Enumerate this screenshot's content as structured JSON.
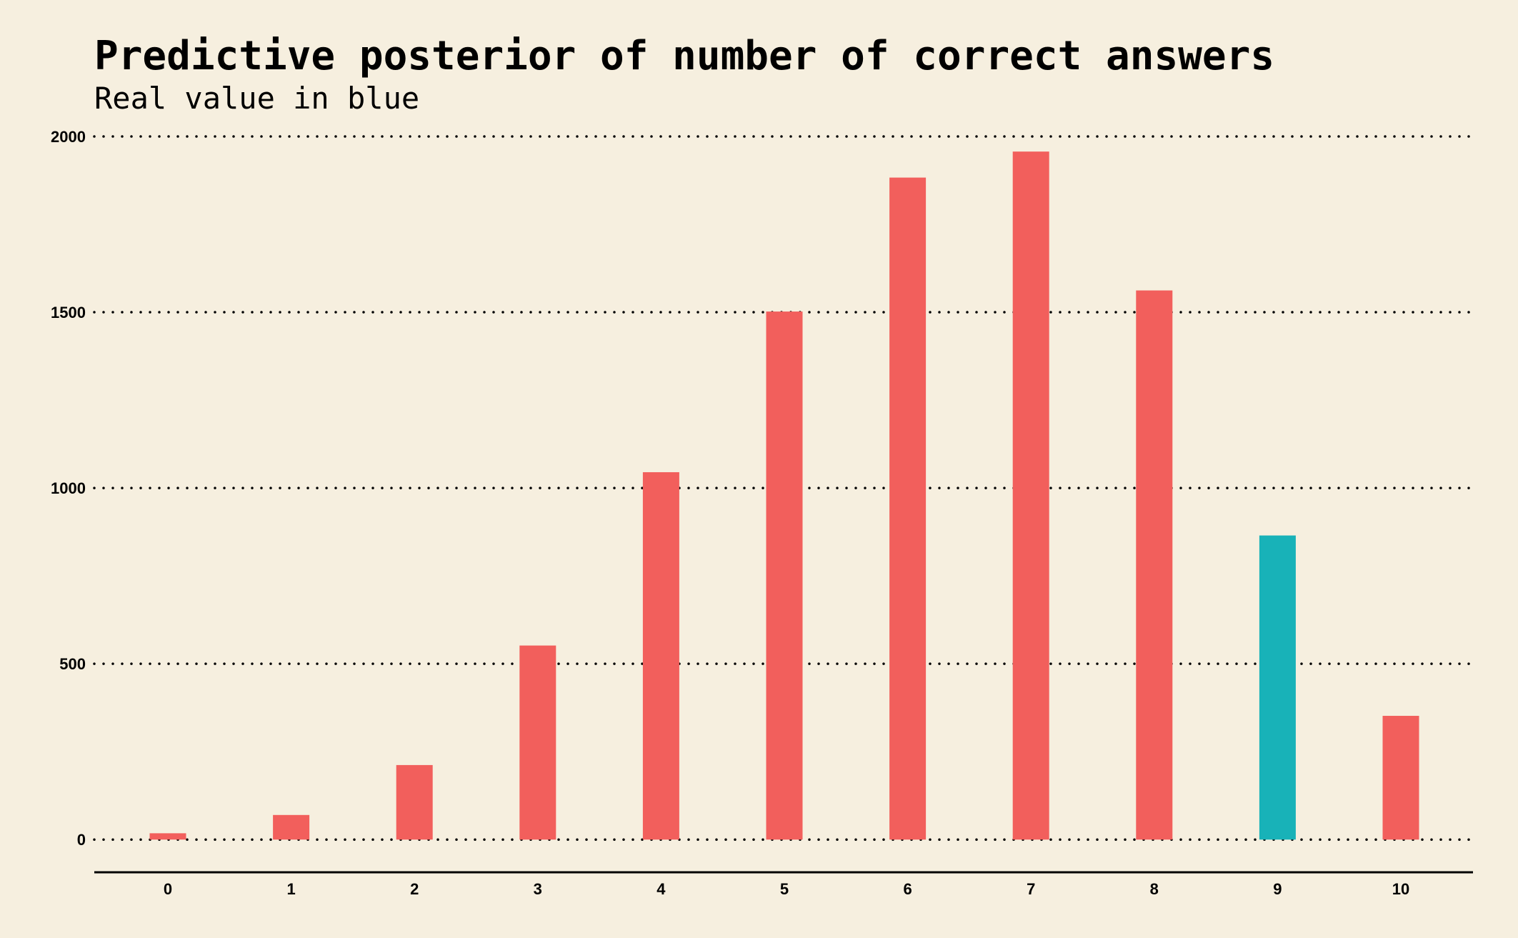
{
  "chart_data": {
    "type": "bar",
    "title": "Predictive posterior of number of correct answers",
    "subtitle": "Real value in blue",
    "xlabel": "",
    "ylabel": "",
    "categories": [
      "0",
      "1",
      "2",
      "3",
      "4",
      "5",
      "6",
      "7",
      "8",
      "9",
      "10"
    ],
    "values": [
      18,
      70,
      212,
      552,
      1045,
      1502,
      1883,
      1957,
      1562,
      865,
      352
    ],
    "highlight_category": "9",
    "ylim": [
      -95,
      2000
    ],
    "yticks": [
      0,
      500,
      1000,
      1500,
      2000
    ],
    "grid": "horizontal dotted",
    "legend": "none",
    "colors": {
      "background": "#f6efdf",
      "bar": "#f25f5c",
      "highlight": "#18b2b8",
      "text": "#000000"
    }
  }
}
